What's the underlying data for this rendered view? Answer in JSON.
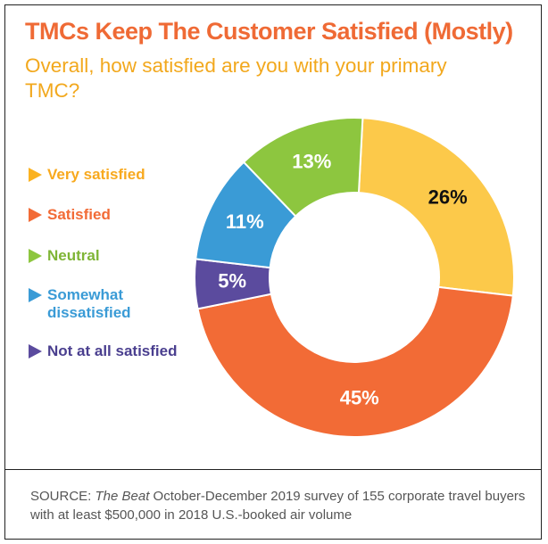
{
  "title": "TMCs Keep The Customer Satisfied (Mostly)",
  "subtitle": "Overall, how satisfied are you with your primary TMC?",
  "legend": [
    {
      "label": "Very satisfied",
      "color": "#fbb220"
    },
    {
      "label": "Satisfied",
      "color": "#f26b36"
    },
    {
      "label": "Neutral",
      "color": "#8dc63f"
    },
    {
      "label": "Somewhat dissatisfied",
      "color": "#3a9bd6"
    },
    {
      "label": "Not at all satisfied",
      "color": "#5b4b9e"
    }
  ],
  "chart_data": {
    "type": "pie",
    "donut": true,
    "categories": [
      "Very satisfied",
      "Satisfied",
      "Not at all satisfied",
      "Somewhat dissatisfied",
      "Neutral"
    ],
    "values": [
      26,
      45,
      5,
      11,
      13
    ],
    "labels": [
      "26%",
      "45%",
      "5%",
      "11%",
      "13%"
    ],
    "colors": [
      "#fcc94a",
      "#f26b36",
      "#5b4b9e",
      "#3a9bd6",
      "#8dc63f"
    ],
    "label_colors": [
      "#111111",
      "#ffffff",
      "#ffffff",
      "#ffffff",
      "#ffffff"
    ],
    "start_angle_deg": 3,
    "direction": "clockwise"
  },
  "source": {
    "prefix": "SOURCE:",
    "publication": " The Beat",
    "text": " October-December 2019 survey of 155 corporate travel buyers with at least $500,000 in 2018 U.S.-booked air volume"
  }
}
